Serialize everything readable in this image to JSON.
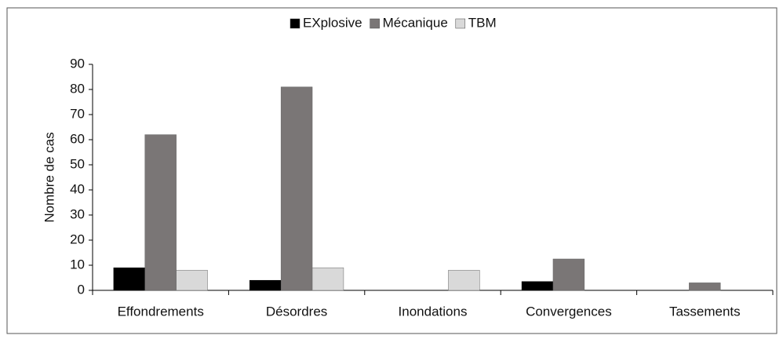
{
  "chart_data": {
    "type": "bar",
    "categories": [
      "Effondrements",
      "Désordres",
      "Inondations",
      "Convergences",
      "Tassements"
    ],
    "series": [
      {
        "name": "EXplosive",
        "color": "#000000",
        "values": [
          9,
          4,
          0,
          3.5,
          0
        ]
      },
      {
        "name": "Mécanique",
        "color": "#7a7676",
        "values": [
          62,
          81,
          0,
          12.5,
          3
        ]
      },
      {
        "name": "TBM",
        "color": "#d9d9d9",
        "values": [
          8,
          9,
          8,
          0,
          0
        ]
      }
    ],
    "ylabel": "Nombre de cas",
    "ylim": [
      0,
      90
    ],
    "yticks": [
      0,
      10,
      20,
      30,
      40,
      50,
      60,
      70,
      80,
      90
    ],
    "legend": "top"
  }
}
